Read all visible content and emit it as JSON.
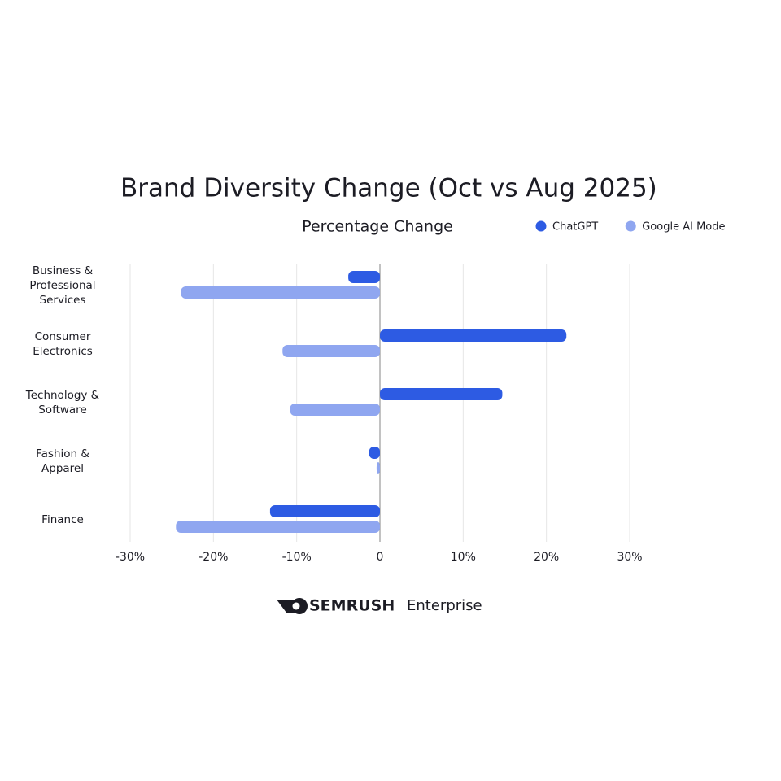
{
  "chart_data": {
    "type": "hbar",
    "title": "Brand Diversity Change (Oct vs Aug 2025)",
    "xlabel": "Percentage Change",
    "categories": [
      "Business & Professional Services",
      "Consumer Electronics",
      "Technology & Software",
      "Fashion & Apparel",
      "Finance"
    ],
    "series": [
      {
        "name": "ChatGPT",
        "color": "#2d5be3",
        "values": [
          -3.8,
          22.4,
          14.7,
          -1.3,
          -13.2
        ]
      },
      {
        "name": "Google AI Mode",
        "color": "#8fa6f0",
        "values": [
          -23.9,
          -11.7,
          -10.8,
          -0.4,
          -24.5
        ]
      }
    ],
    "xlim": [
      -30,
      30
    ],
    "xticks": [
      {
        "value": -30,
        "label": "-30%"
      },
      {
        "value": -20,
        "label": "-20%"
      },
      {
        "value": -10,
        "label": "-10%"
      },
      0,
      {
        "value": 10,
        "label": "10%"
      },
      {
        "value": 20,
        "label": "20%"
      },
      {
        "value": 30,
        "label": "30%"
      }
    ],
    "grid": true,
    "legend": "top-right",
    "logo_text": "SEMRUSH",
    "logo_subtext": "Enterprise"
  }
}
